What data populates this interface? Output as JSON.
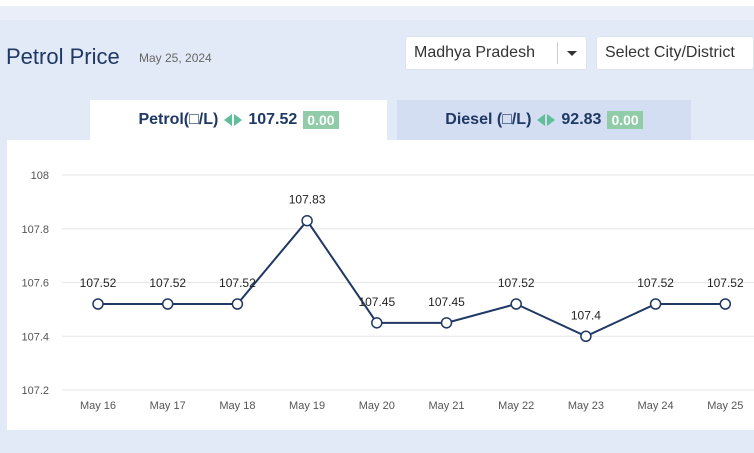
{
  "header": {
    "title": "Petrol Price",
    "date": "May 25, 2024",
    "state_select": "Madhya Pradesh",
    "city_select": "Select City/District"
  },
  "tabs": [
    {
      "label": "Petrol(□/L)",
      "price": "107.52",
      "change": "0.00"
    },
    {
      "label": "Diesel (□/L)",
      "price": "92.83",
      "change": "0.00"
    }
  ],
  "colors": {
    "line": "#1f3864",
    "change_badge": "#8fcca7",
    "change_arrows": "#5fbf9a",
    "grid": "#e6e6e6"
  },
  "chart_data": {
    "type": "line",
    "categories": [
      "May 16",
      "May 17",
      "May 18",
      "May 19",
      "May 20",
      "May 21",
      "May 22",
      "May 23",
      "May 24",
      "May 25"
    ],
    "values": [
      107.52,
      107.52,
      107.52,
      107.83,
      107.45,
      107.45,
      107.52,
      107.4,
      107.52,
      107.52
    ],
    "data_labels": [
      "107.52",
      "107.52",
      "107.52",
      "107.83",
      "107.45",
      "107.45",
      "107.52",
      "107.4",
      "107.52",
      "107.52"
    ],
    "yticks": [
      "108",
      "107.8",
      "107.6",
      "107.4",
      "107.2"
    ],
    "ylim": [
      107.2,
      108
    ],
    "grid": true
  }
}
